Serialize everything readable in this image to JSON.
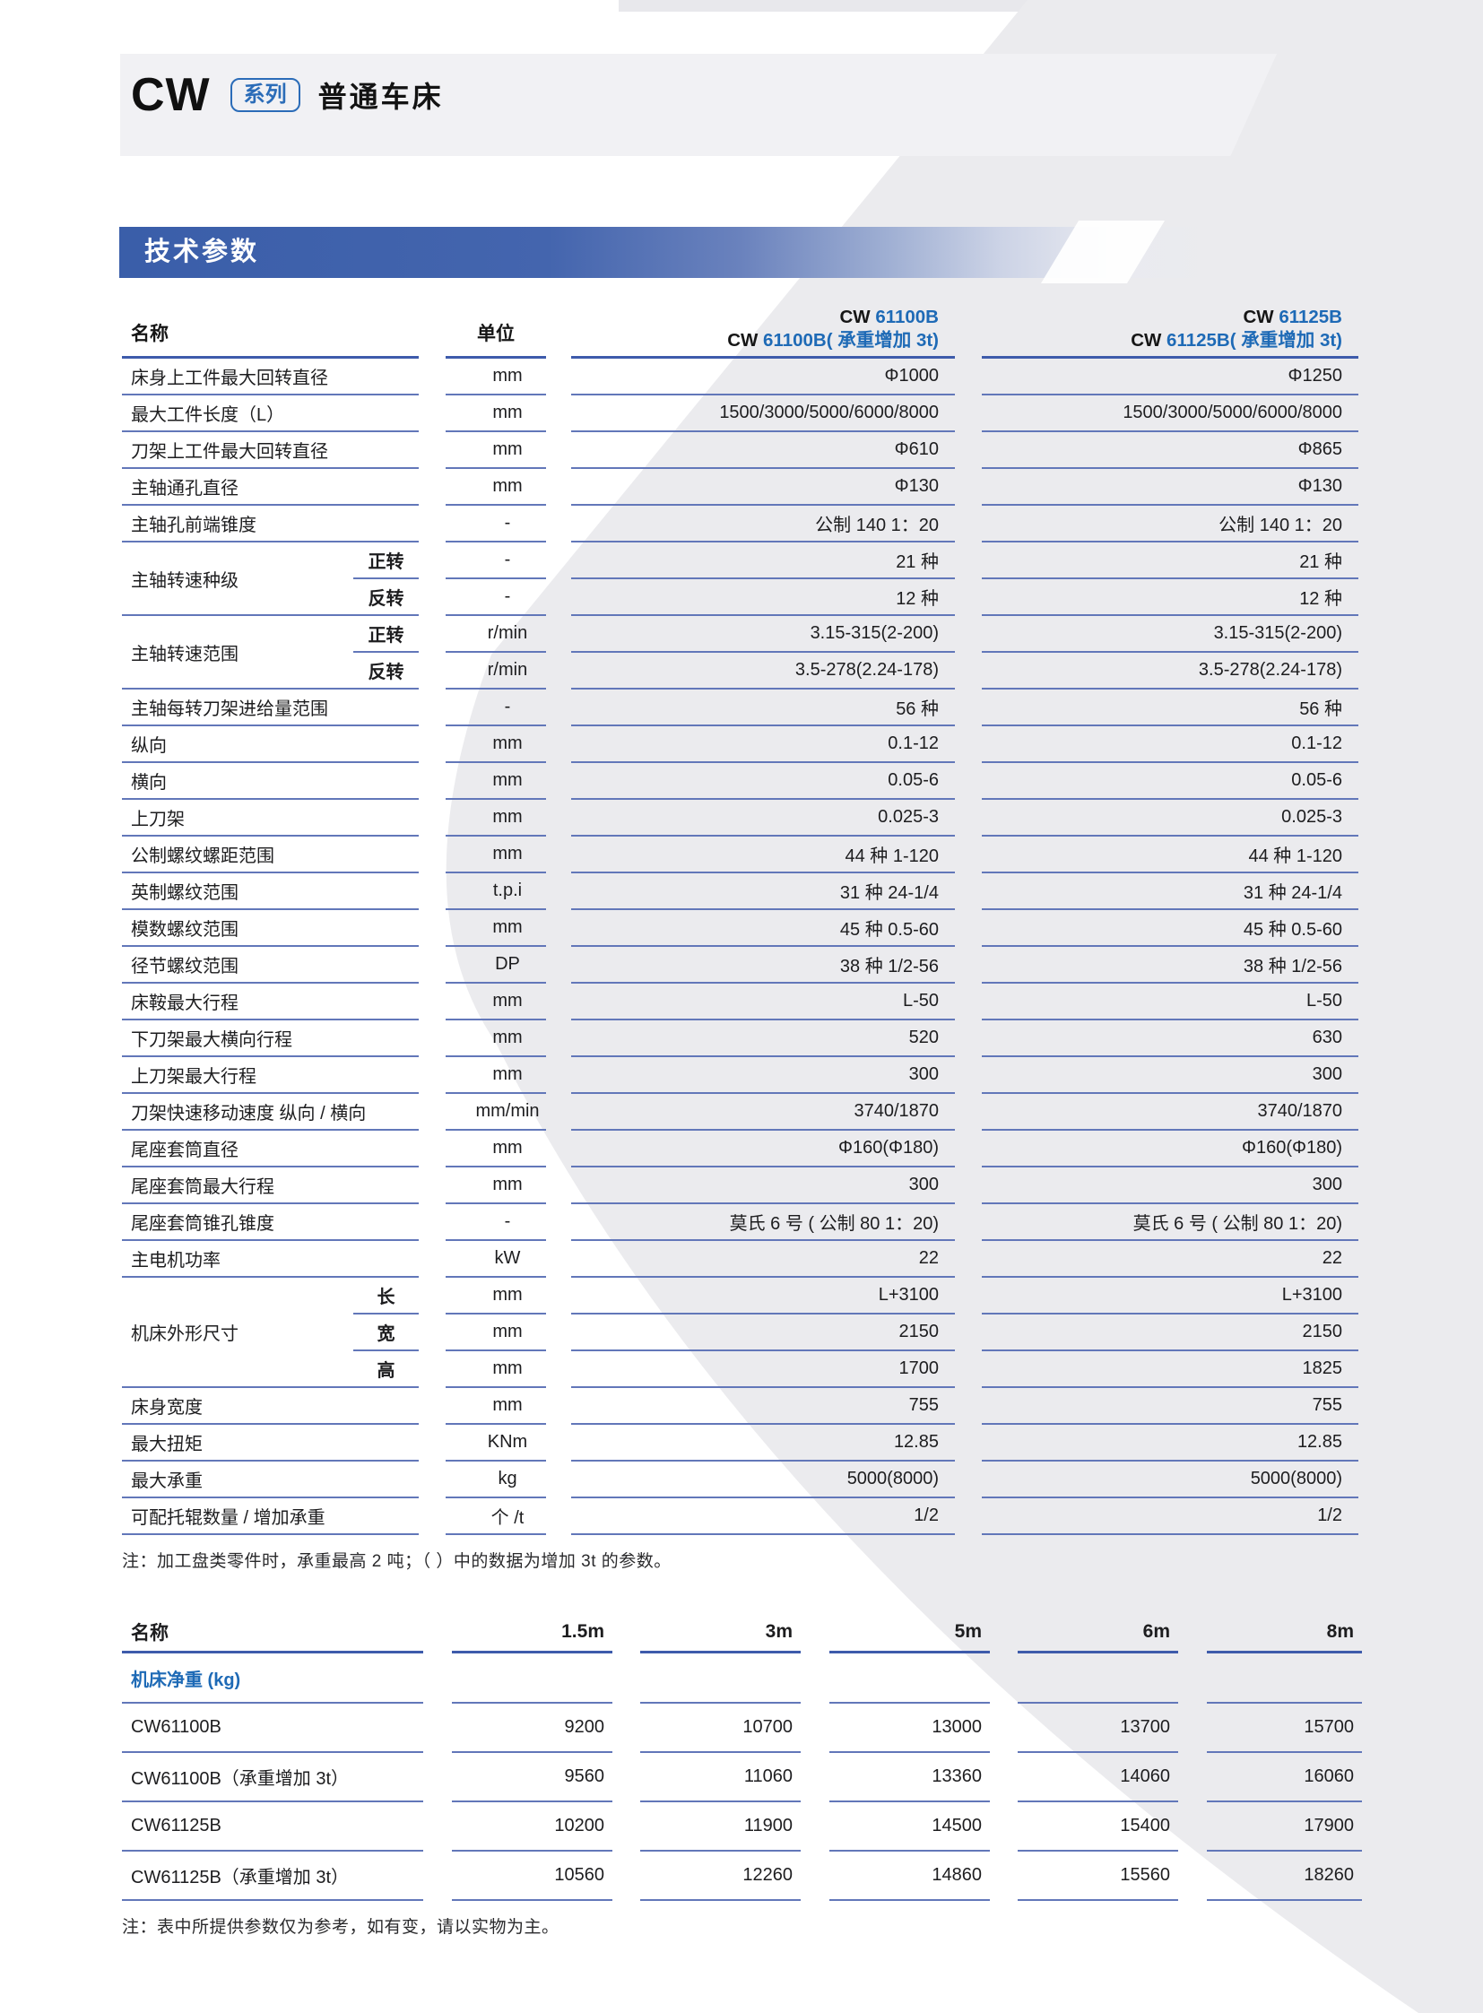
{
  "page": {
    "brand": "CW",
    "series_badge": "系列",
    "subtitle": "普通车床",
    "section_banner": "技术参数",
    "note1": "注：加工盘类零件时，承重最高 2 吨；（ ）中的数据为增加 3t 的参数。",
    "note2": "注：表中所提供参数仅为参考，如有变，请以实物为主。"
  },
  "colors": {
    "accent_blue": "#1e6ab6",
    "banner_blue": "#3a5ea9",
    "line_blue": "#6277b9",
    "sweep_gray": "#ebebee"
  },
  "spec_table": {
    "header": {
      "name": "名称",
      "unit": "单位"
    },
    "columns": [
      {
        "line1_prefix": "CW ",
        "line1_model": "61100B",
        "line2_prefix": "CW ",
        "line2_model": "61100B( 承重增加 3t)"
      },
      {
        "line1_prefix": "CW ",
        "line1_model": "61125B",
        "line2_prefix": "CW ",
        "line2_model": "61125B( 承重增加 3t)"
      }
    ],
    "rows": [
      {
        "label": "床身上工件最大回转直径",
        "unit": "mm",
        "v": [
          "Φ1000",
          "Φ1250"
        ]
      },
      {
        "label": "最大工件长度（L）",
        "unit": "mm",
        "v": [
          "1500/3000/5000/6000/8000",
          "1500/3000/5000/6000/8000"
        ]
      },
      {
        "label": "刀架上工件最大回转直径",
        "unit": "mm",
        "v": [
          "Φ610",
          "Φ865"
        ]
      },
      {
        "label": "主轴通孔直径",
        "unit": "mm",
        "v": [
          "Φ130",
          "Φ130"
        ]
      },
      {
        "label": "主轴孔前端锥度",
        "unit": "-",
        "v": [
          "公制 140 1：20",
          "公制 140 1：20"
        ]
      },
      {
        "label": "主轴转速种级",
        "subs": [
          {
            "sub": "正转",
            "unit": "-",
            "v": [
              "21 种",
              "21 种"
            ]
          },
          {
            "sub": "反转",
            "unit": "-",
            "v": [
              "12 种",
              "12 种"
            ]
          }
        ]
      },
      {
        "label": "主轴转速范围",
        "subs": [
          {
            "sub": "正转",
            "unit": "r/min",
            "v": [
              "3.15-315(2-200)",
              "3.15-315(2-200)"
            ]
          },
          {
            "sub": "反转",
            "unit": "r/min",
            "v": [
              "3.5-278(2.24-178)",
              "3.5-278(2.24-178)"
            ]
          }
        ]
      },
      {
        "label": "主轴每转刀架进给量范围",
        "unit": "-",
        "v": [
          "56 种",
          "56 种"
        ]
      },
      {
        "label": "纵向",
        "unit": "mm",
        "v": [
          "0.1-12",
          "0.1-12"
        ]
      },
      {
        "label": "横向",
        "unit": "mm",
        "v": [
          "0.05-6",
          "0.05-6"
        ]
      },
      {
        "label": "上刀架",
        "unit": "mm",
        "v": [
          "0.025-3",
          "0.025-3"
        ]
      },
      {
        "label": "公制螺纹螺距范围",
        "unit": "mm",
        "v": [
          "44 种 1-120",
          "44 种 1-120"
        ]
      },
      {
        "label": "英制螺纹范围",
        "unit": "t.p.i",
        "v": [
          "31 种 24-1/4",
          "31 种 24-1/4"
        ]
      },
      {
        "label": "模数螺纹范围",
        "unit": "mm",
        "v": [
          "45 种 0.5-60",
          "45 种 0.5-60"
        ]
      },
      {
        "label": "径节螺纹范围",
        "unit": "DP",
        "v": [
          "38 种 1/2-56",
          "38 种 1/2-56"
        ]
      },
      {
        "label": "床鞍最大行程",
        "unit": "mm",
        "v": [
          "L-50",
          "L-50"
        ]
      },
      {
        "label": "下刀架最大横向行程",
        "unit": "mm",
        "v": [
          "520",
          "630"
        ]
      },
      {
        "label": "上刀架最大行程",
        "unit": "mm",
        "v": [
          "300",
          "300"
        ]
      },
      {
        "label": "刀架快速移动速度 纵向 / 横向",
        "unit": "mm/min",
        "v": [
          "3740/1870",
          "3740/1870"
        ]
      },
      {
        "label": "尾座套筒直径",
        "unit": "mm",
        "v": [
          "Φ160(Φ180)",
          "Φ160(Φ180)"
        ]
      },
      {
        "label": "尾座套筒最大行程",
        "unit": "mm",
        "v": [
          "300",
          "300"
        ]
      },
      {
        "label": "尾座套筒锥孔锥度",
        "unit": "-",
        "v": [
          "莫氏 6 号 ( 公制 80  1：20)",
          "莫氏 6 号 ( 公制 80  1：20)"
        ]
      },
      {
        "label": "主电机功率",
        "unit": "kW",
        "v": [
          "22",
          "22"
        ]
      },
      {
        "label": "机床外形尺寸",
        "subs": [
          {
            "sub": "长",
            "unit": "mm",
            "v": [
              "L+3100",
              "L+3100"
            ]
          },
          {
            "sub": "宽",
            "unit": "mm",
            "v": [
              "2150",
              "2150"
            ]
          },
          {
            "sub": "高",
            "unit": "mm",
            "v": [
              "1700",
              "1825"
            ]
          }
        ]
      },
      {
        "label": "床身宽度",
        "unit": "mm",
        "v": [
          "755",
          "755"
        ]
      },
      {
        "label": "最大扭矩",
        "unit": "KNm",
        "v": [
          "12.85",
          "12.85"
        ]
      },
      {
        "label": "最大承重",
        "unit": "kg",
        "v": [
          "5000(8000)",
          "5000(8000)"
        ]
      },
      {
        "label": "可配托辊数量 / 增加承重",
        "unit": "个 /t",
        "v": [
          "1/2",
          "1/2"
        ]
      }
    ]
  },
  "weight_table": {
    "header": [
      "名称",
      "1.5m",
      "3m",
      "5m",
      "6m",
      "8m"
    ],
    "group_label": "机床净重 (kg)",
    "rows": [
      {
        "label": "CW61100B",
        "values": [
          "9200",
          "10700",
          "13000",
          "13700",
          "15700"
        ]
      },
      {
        "label": "CW61100B（承重增加 3t）",
        "values": [
          "9560",
          "11060",
          "13360",
          "14060",
          "16060"
        ]
      },
      {
        "label": "CW61125B",
        "values": [
          "10200",
          "11900",
          "14500",
          "15400",
          "17900"
        ]
      },
      {
        "label": "CW61125B（承重增加 3t）",
        "values": [
          "10560",
          "12260",
          "14860",
          "15560",
          "18260"
        ]
      }
    ]
  }
}
